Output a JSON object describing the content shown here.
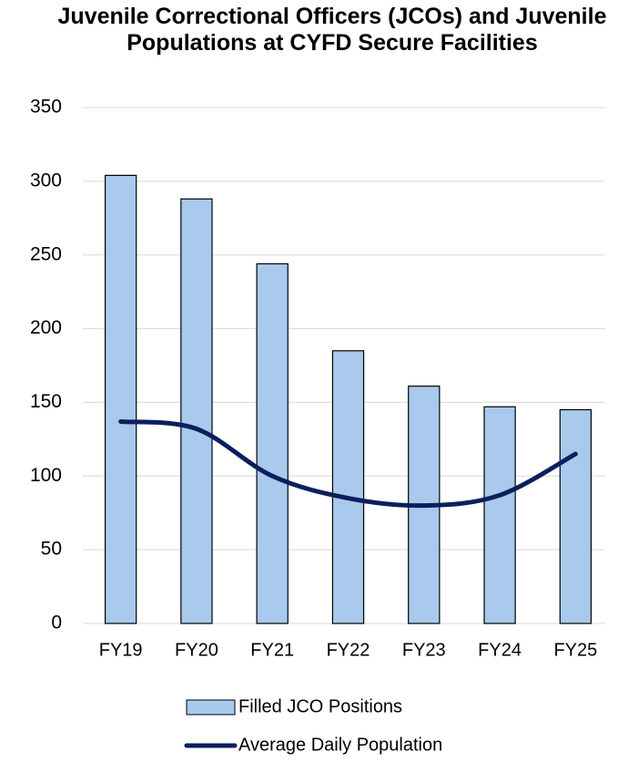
{
  "chart_data": {
    "type": "bar",
    "title": "Juvenile Correctional Officers (JCOs) and Juvenile Populations at CYFD Secure Facilities",
    "categories": [
      "FY19",
      "FY20",
      "FY21",
      "FY22",
      "FY23",
      "FY24",
      "FY25"
    ],
    "series": [
      {
        "name": "Filled JCO Positions",
        "type": "bar",
        "color": "#a9c9ed",
        "values": [
          304,
          288,
          244,
          185,
          161,
          147,
          145
        ]
      },
      {
        "name": "Average Daily Population",
        "type": "line",
        "color": "#0b1f5c",
        "values": [
          137,
          132,
          100,
          85,
          80,
          87,
          115
        ]
      }
    ],
    "ylim": [
      0,
      350
    ],
    "yticks": [
      0,
      50,
      100,
      150,
      200,
      250,
      300,
      350
    ],
    "grid": true,
    "legend": "bottom"
  }
}
